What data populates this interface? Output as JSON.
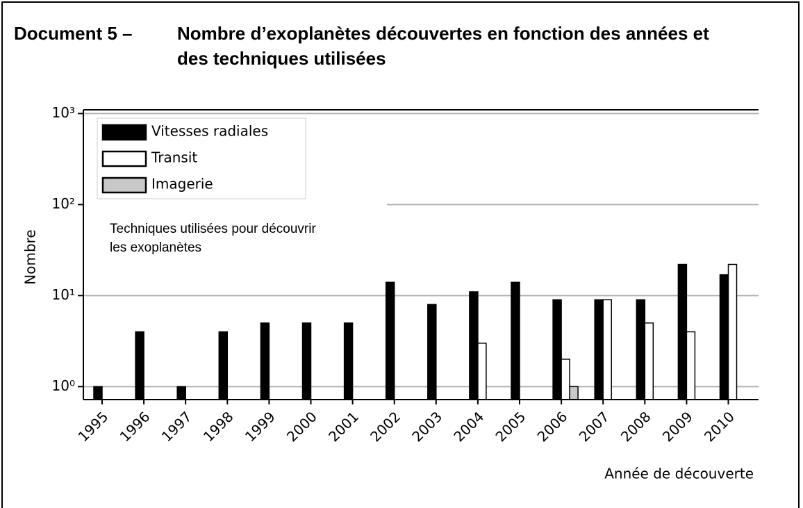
{
  "chart_data": {
    "type": "bar",
    "document_label": "Document 5 –",
    "title": "Nombre d’exoplanètes découvertes en fonction des années et des techniques utilisées",
    "annotation": "Techniques utilisées pour découvrir les exoplanètes",
    "xlabel": "Année de découverte",
    "ylabel": "Nombre",
    "log_y": true,
    "grid": true,
    "legend": "upper left",
    "ylim": [
      0.72,
      1100
    ],
    "yticks": [
      {
        "value": 1,
        "label": "10⁰"
      },
      {
        "value": 10,
        "label": "10¹"
      },
      {
        "value": 100,
        "label": "10²"
      },
      {
        "value": 1000,
        "label": "10³"
      }
    ],
    "categories": [
      "1995",
      "1996",
      "1997",
      "1998",
      "1999",
      "2000",
      "2001",
      "2002",
      "2003",
      "2004",
      "2005",
      "2006",
      "2007",
      "2008",
      "2009",
      "2010"
    ],
    "series": [
      {
        "name": "Vitesses radiales",
        "color": "#000000",
        "values": [
          1,
          4,
          1,
          4,
          5,
          5,
          5,
          14,
          8,
          11,
          14,
          9,
          9,
          9,
          22,
          17
        ]
      },
      {
        "name": "Transit",
        "color": "#ffffff",
        "values": [
          null,
          null,
          null,
          null,
          null,
          null,
          null,
          null,
          null,
          3,
          null,
          2,
          9,
          5,
          4,
          22
        ]
      },
      {
        "name": "Imagerie",
        "color": "#c8c8c8",
        "values": [
          null,
          null,
          null,
          null,
          null,
          null,
          null,
          null,
          null,
          null,
          null,
          1,
          null,
          null,
          null,
          null
        ]
      }
    ]
  }
}
